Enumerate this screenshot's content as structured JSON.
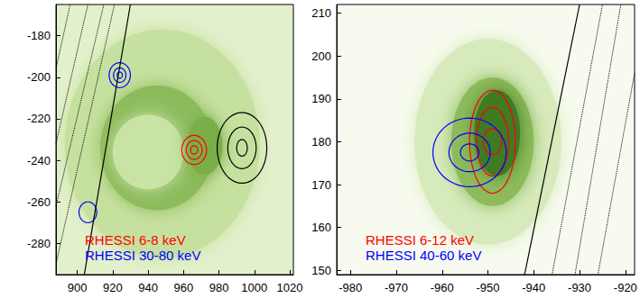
{
  "chart_data": [
    {
      "type": "contour_map",
      "xlim": [
        888,
        1022
      ],
      "ylim": [
        -295,
        -165
      ],
      "xticks": [
        900,
        920,
        940,
        960,
        980,
        1000,
        1020
      ],
      "yticks": [
        -280,
        -260,
        -240,
        -220,
        -200,
        -180
      ],
      "legend": "lower left",
      "euv_emission": [
        {
          "center": [
            948,
            -232
          ],
          "rx": 55,
          "ry": 55,
          "color": "#c6e19f"
        },
        {
          "center": [
            945,
            -234
          ],
          "rx": 32,
          "ry": 30,
          "color": "#8dbb5c"
        },
        {
          "center": [
            940,
            -236
          ],
          "rx": 20,
          "ry": 18,
          "color": "#c9e3a5"
        },
        {
          "center": [
            972,
            -233
          ],
          "rx": 10,
          "ry": 14,
          "color": "#7aae4a"
        }
      ],
      "limb": {
        "color": "black",
        "line_style": "solid",
        "points": [
          [
            904,
            -295
          ],
          [
            930,
            -165
          ]
        ]
      },
      "heliographic_grid": {
        "color": "black",
        "line_style": "dotted",
        "lines": [
          [
            [
              888,
              -196
            ],
            [
              896,
              -165
            ]
          ],
          [
            [
              888,
              -232
            ],
            [
              906,
              -165
            ]
          ],
          [
            [
              888,
              -262
            ],
            [
              915,
              -165
            ]
          ],
          [
            [
              888,
              -290
            ],
            [
              921,
              -165
            ]
          ]
        ]
      },
      "sources": [
        {
          "name": "RHESSI 6-8 keV",
          "color": "red",
          "components": [
            {
              "center": [
                966,
                -235
              ],
              "radii": [
                [
                  2,
                  2
                ],
                [
                  4.5,
                  4.5
                ],
                [
                  7,
                  7
                ]
              ]
            }
          ]
        },
        {
          "name": "RHESSI 30-80 keV",
          "color": "blue",
          "components": [
            {
              "center": [
                924,
                -199
              ],
              "radii": [
                [
                  1.5,
                  1.5
                ],
                [
                  3.5,
                  3.5
                ],
                [
                  6,
                  6
                ]
              ]
            },
            {
              "center": [
                906,
                -265
              ],
              "radii": [
                [
                  5,
                  5
                ]
              ]
            }
          ]
        },
        {
          "color": "black",
          "components": [
            {
              "center": [
                993,
                -234
              ],
              "radii": [
                [
                  3,
                  4
                ],
                [
                  8,
                  10
                ],
                [
                  14,
                  17
                ]
              ]
            }
          ]
        }
      ]
    },
    {
      "type": "contour_map",
      "xlim": [
        -983,
        -918
      ],
      "ylim": [
        149,
        212
      ],
      "xticks": [
        -980,
        -970,
        -960,
        -950,
        -940,
        -930,
        -920
      ],
      "yticks": [
        150,
        160,
        170,
        180,
        190,
        200,
        210
      ],
      "legend": "lower left",
      "euv_emission": [
        {
          "center": [
            -950,
            180
          ],
          "rx": 16,
          "ry": 24,
          "color": "#d7eabb"
        },
        {
          "center": [
            -949,
            180
          ],
          "rx": 9,
          "ry": 15,
          "color": "#8dbb5c"
        },
        {
          "center": [
            -948,
            182
          ],
          "rx": 5,
          "ry": 10,
          "color": "#3f7a22"
        }
      ],
      "limb": {
        "color": "black",
        "line_style": "solid",
        "points": [
          [
            -942,
            149
          ],
          [
            -930,
            212
          ]
        ]
      },
      "heliographic_grid": {
        "color": "black",
        "line_style": "dotted",
        "lines": [
          [
            [
              -936,
              149
            ],
            [
              -925,
              212
            ]
          ],
          [
            [
              -931,
              149
            ],
            [
              -921,
              212
            ]
          ],
          [
            [
              -926,
              149
            ],
            [
              -918,
              196
            ]
          ]
        ]
      },
      "sources": [
        {
          "name": "RHESSI 6-12 keV",
          "color": "red",
          "components": [
            {
              "center": [
                -949,
                180
              ],
              "radii": [
                [
                  2,
                  3
                ],
                [
                  3.5,
                  8
                ],
                [
                  5,
                  12
                ]
              ]
            }
          ]
        },
        {
          "name": "RHESSI 40-60 keV",
          "color": "blue",
          "components": [
            {
              "center": [
                -954,
                177.5
              ],
              "radii": [
                [
                  2,
                  2
                ],
                [
                  4.5,
                  4.5
                ],
                [
                  8,
                  8
                ]
              ]
            }
          ]
        }
      ]
    }
  ]
}
